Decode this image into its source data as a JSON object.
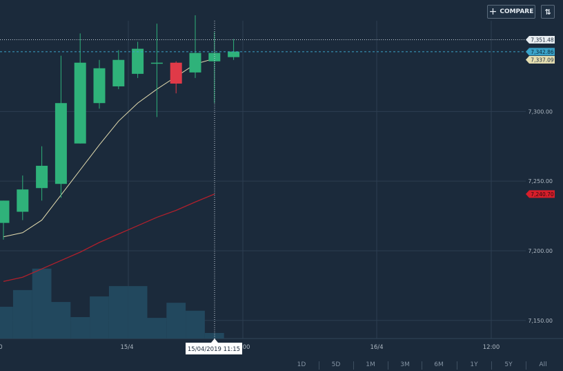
{
  "toolbar": {
    "compare_label": "COMPARE",
    "plus_glyph": "+",
    "sort_glyph": "⇅",
    "compare_icon": "plus-icon",
    "sort_icon": "sort-arrows-icon"
  },
  "colors": {
    "up": "#2fb27a",
    "down": "#e03a48",
    "ma_short": "#e4ddb0",
    "ma_long": "#b0202c",
    "volume": "#22485e",
    "grid": "#2d3e51",
    "axis_text": "#aeb8c2",
    "crosshair": "#c9d3dc",
    "last_price_line": "#3aa3c9"
  },
  "range_buttons": [
    "1D",
    "5D",
    "1M",
    "3M",
    "6M",
    "1Y",
    "5Y",
    "All"
  ],
  "chart_data": {
    "type": "candlestick",
    "y_axis": {
      "ticks": [
        "7,150.00",
        "7,200.00",
        "7,250.00",
        "7,300.00"
      ],
      "tick_values": [
        7150,
        7200,
        7250,
        7300
      ],
      "range": [
        7137,
        7380
      ]
    },
    "x_axis": {
      "tick_labels": [
        "0",
        "15/4",
        "00",
        "16/4",
        "12:00"
      ],
      "crosshair_label": "15/04/2019 11:15"
    },
    "candles": [
      {
        "o": 7220,
        "h": 7236,
        "l": 7208,
        "c": 7236
      },
      {
        "o": 7228,
        "h": 7254,
        "l": 7222,
        "c": 7244
      },
      {
        "o": 7245,
        "h": 7275,
        "l": 7236,
        "c": 7261
      },
      {
        "o": 7248,
        "h": 7340,
        "l": 7238,
        "c": 7306
      },
      {
        "o": 7277,
        "h": 7356,
        "l": 7277,
        "c": 7335
      },
      {
        "o": 7306,
        "h": 7337,
        "l": 7302,
        "c": 7331
      },
      {
        "o": 7318,
        "h": 7344,
        "l": 7316,
        "c": 7337
      },
      {
        "o": 7327,
        "h": 7350,
        "l": 7324,
        "c": 7345
      },
      {
        "o": 7335,
        "h": 7363,
        "l": 7296,
        "c": 7335
      },
      {
        "o": 7335,
        "h": 7336,
        "l": 7313,
        "c": 7320
      },
      {
        "o": 7328,
        "h": 7369,
        "l": 7324,
        "c": 7342
      },
      {
        "o": 7336,
        "h": 7357,
        "l": 7306,
        "c": 7342
      },
      {
        "o": 7339,
        "h": 7352,
        "l": 7337,
        "c": 7343
      }
    ],
    "ma_short": [
      7210,
      7213,
      7222,
      7240,
      7258,
      7276,
      7293,
      7306,
      7316,
      7325,
      7334,
      7338
    ],
    "ma_long": [
      7178,
      7181,
      7187,
      7193,
      7199,
      7206,
      7212,
      7218,
      7224,
      7229,
      7235,
      7240.7
    ],
    "volume": [
      0.4,
      0.61,
      0.88,
      0.46,
      0.27,
      0.53,
      0.66,
      0.66,
      0.26,
      0.45,
      0.35,
      0.07
    ],
    "price_labels": [
      {
        "label": "7,351.48",
        "value": 7351.48,
        "color": "#e8edf1",
        "text_color": "#1b2a3b"
      },
      {
        "label": "7,342.86",
        "value": 7342.86,
        "color": "#3aa3c9",
        "text_color": "#0d2a3b"
      },
      {
        "label": "7,337.09",
        "value": 7337.09,
        "color": "#e4ddb0",
        "text_color": "#1b2a3b"
      },
      {
        "label": "7,240.70",
        "value": 7240.7,
        "color": "#d61e2a",
        "text_color": "#2a0c0f"
      }
    ]
  }
}
